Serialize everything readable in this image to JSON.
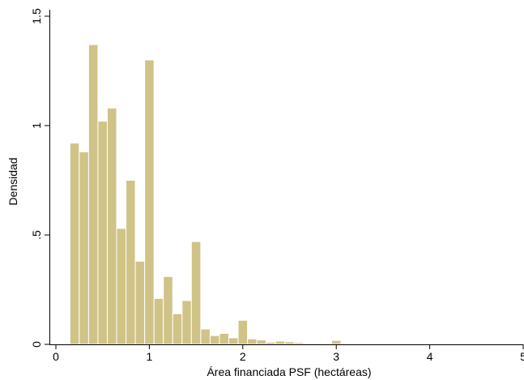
{
  "chart_data": {
    "type": "bar",
    "subtype": "histogram",
    "title": "",
    "xlabel": "Área financiada PSF (hectáreas)",
    "ylabel": "Densidad",
    "xlim": [
      0,
      5
    ],
    "ylim": [
      0,
      1.5
    ],
    "xticks": [
      0,
      1,
      2,
      3,
      4,
      5
    ],
    "xtick_labels": [
      "0",
      "1",
      "2",
      "3",
      "4",
      "5"
    ],
    "yticks": [
      0,
      0.5,
      1,
      1.5
    ],
    "ytick_labels": [
      "0",
      ".5",
      "1",
      "1.5"
    ],
    "bin_width": 0.1,
    "bin_starts": [
      0.15,
      0.25,
      0.35,
      0.45,
      0.55,
      0.65,
      0.75,
      0.85,
      0.95,
      1.05,
      1.15,
      1.25,
      1.35,
      1.45,
      1.55,
      1.65,
      1.75,
      1.85,
      1.95,
      2.05,
      2.15,
      2.25,
      2.35,
      2.45,
      2.55,
      2.65,
      2.75,
      2.85,
      2.95,
      3.05,
      3.15,
      3.25,
      3.35,
      3.45,
      3.55,
      3.65,
      3.75,
      3.85,
      3.95,
      4.05,
      4.15,
      4.25,
      4.35,
      4.45,
      4.55,
      4.65,
      4.75,
      4.85,
      4.95
    ],
    "values": [
      0.92,
      0.88,
      1.37,
      1.02,
      1.08,
      0.53,
      0.75,
      0.38,
      1.3,
      0.21,
      0.31,
      0.14,
      0.2,
      0.47,
      0.07,
      0.04,
      0.05,
      0.03,
      0.11,
      0.025,
      0.02,
      0.01,
      0.015,
      0.012,
      0.008,
      0.005,
      0.005,
      0.004,
      0.018,
      0.002,
      0.002,
      0.002,
      0.001,
      0.001,
      0.001,
      0.001,
      0.001,
      0.001,
      0.001,
      0.001,
      0.001,
      0.001,
      0.001,
      0.001,
      0.001,
      0.001,
      0.001,
      0.001,
      0.001
    ],
    "bar_color": "#d0c387",
    "bar_edge_color": "#ffffff",
    "grid": false,
    "legend": "none"
  }
}
